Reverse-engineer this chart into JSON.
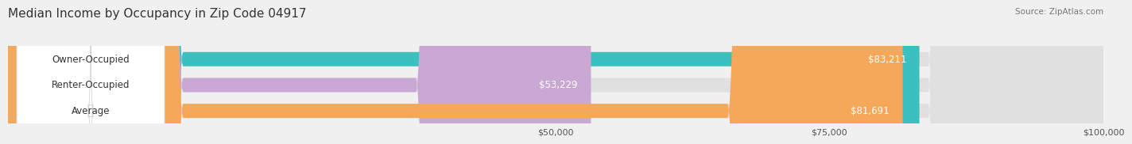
{
  "title": "Median Income by Occupancy in Zip Code 04917",
  "source": "Source: ZipAtlas.com",
  "categories": [
    "Owner-Occupied",
    "Renter-Occupied",
    "Average"
  ],
  "values": [
    83211,
    53229,
    81691
  ],
  "labels": [
    "$83,211",
    "$53,229",
    "$81,691"
  ],
  "bar_colors": [
    "#3bbfbf",
    "#c9a8d4",
    "#f5a85a"
  ],
  "background_color": "#f0f0f0",
  "xmin": 0,
  "xmax": 100000,
  "xticks": [
    50000,
    75000,
    100000
  ],
  "xtick_labels": [
    "$50,000",
    "$75,000",
    "$100,000"
  ],
  "title_fontsize": 11,
  "label_fontsize": 8.5,
  "bar_height": 0.55
}
